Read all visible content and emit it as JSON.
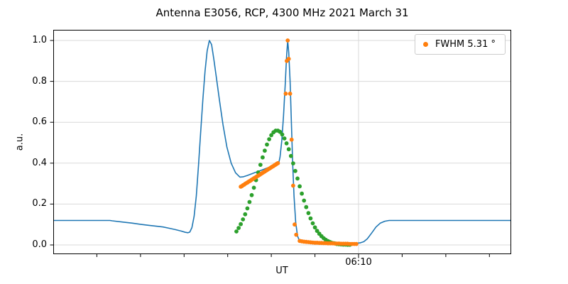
{
  "chart_data": {
    "type": "line",
    "title": "Antenna E3056, RCP, 4300 MHz 2021 March 31",
    "xlabel": "UT",
    "ylabel": "a.u.",
    "grid": true,
    "x_axis": {
      "start": 0,
      "end": 105,
      "units": "minutes after 05:00 UT",
      "minor_tick_interval": 10,
      "major_ticks": [
        {
          "t": 70,
          "label": "06:10"
        }
      ]
    },
    "ylim": [
      -0.045,
      1.052
    ],
    "yticks": [
      {
        "v": 0.0,
        "label": "0.0"
      },
      {
        "v": 0.2,
        "label": "0.2"
      },
      {
        "v": 0.4,
        "label": "0.4"
      },
      {
        "v": 0.6,
        "label": "0.6"
      },
      {
        "v": 0.8,
        "label": "0.8"
      },
      {
        "v": 1.0,
        "label": "1.0"
      }
    ],
    "legend": {
      "label": "FWHM 5.31 °",
      "marker_color": "#ff7f0e",
      "location": "upper right"
    },
    "series": [
      {
        "name": "signal-line",
        "type": "line",
        "color": "#1f77b4",
        "stroke_width": 1.6,
        "points": [
          [
            0,
            0.12
          ],
          [
            6,
            0.12
          ],
          [
            12,
            0.12
          ],
          [
            13,
            0.12
          ],
          [
            13.5,
            0.118
          ],
          [
            16,
            0.112
          ],
          [
            18,
            0.107
          ],
          [
            20,
            0.101
          ],
          [
            22,
            0.096
          ],
          [
            24,
            0.091
          ],
          [
            25.2,
            0.088
          ],
          [
            26.5,
            0.082
          ],
          [
            28,
            0.075
          ],
          [
            29.3,
            0.068
          ],
          [
            30.3,
            0.062
          ],
          [
            30.9,
            0.06
          ],
          [
            31.3,
            0.063
          ],
          [
            31.8,
            0.085
          ],
          [
            32.3,
            0.14
          ],
          [
            32.8,
            0.24
          ],
          [
            33.3,
            0.39
          ],
          [
            33.8,
            0.55
          ],
          [
            34.3,
            0.71
          ],
          [
            34.8,
            0.85
          ],
          [
            35.3,
            0.95
          ],
          [
            35.8,
            1.0
          ],
          [
            36.3,
            0.98
          ],
          [
            36.8,
            0.91
          ],
          [
            37.4,
            0.82
          ],
          [
            38.1,
            0.71
          ],
          [
            38.9,
            0.59
          ],
          [
            39.8,
            0.48
          ],
          [
            40.8,
            0.4
          ],
          [
            41.8,
            0.353
          ],
          [
            42.8,
            0.332
          ],
          [
            43.5,
            0.333
          ],
          [
            44.5,
            0.34
          ],
          [
            46,
            0.352
          ],
          [
            47.5,
            0.364
          ],
          [
            49,
            0.376
          ],
          [
            50.2,
            0.386
          ],
          [
            51.2,
            0.394
          ],
          [
            51.7,
            0.401
          ],
          [
            52.0,
            0.43
          ],
          [
            52.4,
            0.51
          ],
          [
            52.8,
            0.63
          ],
          [
            53.2,
            0.79
          ],
          [
            53.5,
            0.92
          ],
          [
            53.75,
            1.0
          ],
          [
            54.0,
            0.94
          ],
          [
            54.3,
            0.8
          ],
          [
            54.6,
            0.6
          ],
          [
            54.9,
            0.4
          ],
          [
            55.2,
            0.24
          ],
          [
            55.6,
            0.11
          ],
          [
            56.0,
            0.045
          ],
          [
            56.4,
            0.022
          ],
          [
            57,
            0.014
          ],
          [
            58,
            0.011
          ],
          [
            60,
            0.01
          ],
          [
            63,
            0.009
          ],
          [
            66,
            0.009
          ],
          [
            69,
            0.009
          ],
          [
            70.3,
            0.01
          ],
          [
            71.2,
            0.016
          ],
          [
            72,
            0.03
          ],
          [
            73,
            0.058
          ],
          [
            74,
            0.088
          ],
          [
            75,
            0.107
          ],
          [
            76,
            0.116
          ],
          [
            77,
            0.12
          ],
          [
            80,
            0.12
          ],
          [
            85,
            0.12
          ],
          [
            90,
            0.12
          ],
          [
            95,
            0.12
          ],
          [
            100,
            0.12
          ],
          [
            105,
            0.12
          ]
        ]
      },
      {
        "name": "gaussian-fit-points",
        "type": "scatter",
        "color": "#2ca02c",
        "marker_radius": 2.9,
        "points": [
          [
            42,
            0.066
          ],
          [
            42.5,
            0.083
          ],
          [
            43,
            0.102
          ],
          [
            43.5,
            0.125
          ],
          [
            44,
            0.15
          ],
          [
            44.5,
            0.179
          ],
          [
            45,
            0.21
          ],
          [
            45.5,
            0.244
          ],
          [
            46,
            0.28
          ],
          [
            46.5,
            0.317
          ],
          [
            47,
            0.355
          ],
          [
            47.5,
            0.392
          ],
          [
            48,
            0.428
          ],
          [
            48.5,
            0.461
          ],
          [
            49,
            0.491
          ],
          [
            49.5,
            0.517
          ],
          [
            50,
            0.537
          ],
          [
            50.5,
            0.551
          ],
          [
            51,
            0.559
          ],
          [
            51.5,
            0.559
          ],
          [
            52,
            0.553
          ],
          [
            52.5,
            0.54
          ],
          [
            53,
            0.521
          ],
          [
            53.5,
            0.497
          ],
          [
            54,
            0.468
          ],
          [
            54.5,
            0.435
          ],
          [
            55,
            0.399
          ],
          [
            55.5,
            0.362
          ],
          [
            56,
            0.325
          ],
          [
            56.5,
            0.287
          ],
          [
            57,
            0.251
          ],
          [
            57.5,
            0.217
          ],
          [
            58,
            0.185
          ],
          [
            58.5,
            0.156
          ],
          [
            59,
            0.13
          ],
          [
            59.5,
            0.106
          ],
          [
            60,
            0.086
          ],
          [
            60.5,
            0.069
          ],
          [
            61,
            0.055
          ],
          [
            61.5,
            0.043
          ],
          [
            62,
            0.033
          ],
          [
            62.5,
            0.025
          ],
          [
            63,
            0.019
          ],
          [
            63.5,
            0.014
          ],
          [
            64,
            0.01
          ],
          [
            64.5,
            0.008
          ],
          [
            65,
            0.005
          ],
          [
            65.5,
            0.004
          ],
          [
            66,
            0.003
          ],
          [
            66.5,
            0.002
          ],
          [
            67,
            0.002
          ],
          [
            67.5,
            0.001
          ],
          [
            68,
            0.001
          ]
        ]
      },
      {
        "name": "fwhm-measure-points",
        "type": "scatter",
        "color": "#ff7f0e",
        "marker_radius": 2.9,
        "points": [
          [
            43.0,
            0.285
          ],
          [
            43.25,
            0.288
          ],
          [
            43.5,
            0.292
          ],
          [
            43.75,
            0.295
          ],
          [
            44.0,
            0.299
          ],
          [
            44.25,
            0.302
          ],
          [
            44.5,
            0.305
          ],
          [
            44.75,
            0.309
          ],
          [
            45.0,
            0.312
          ],
          [
            45.25,
            0.315
          ],
          [
            45.5,
            0.319
          ],
          [
            45.75,
            0.322
          ],
          [
            46.0,
            0.326
          ],
          [
            46.25,
            0.329
          ],
          [
            46.5,
            0.332
          ],
          [
            46.75,
            0.336
          ],
          [
            47.0,
            0.339
          ],
          [
            47.25,
            0.342
          ],
          [
            47.5,
            0.346
          ],
          [
            47.75,
            0.349
          ],
          [
            48.0,
            0.353
          ],
          [
            48.25,
            0.356
          ],
          [
            48.5,
            0.359
          ],
          [
            48.75,
            0.363
          ],
          [
            49.0,
            0.366
          ],
          [
            49.25,
            0.37
          ],
          [
            49.5,
            0.373
          ],
          [
            49.75,
            0.376
          ],
          [
            50.0,
            0.38
          ],
          [
            50.25,
            0.383
          ],
          [
            50.5,
            0.386
          ],
          [
            50.75,
            0.39
          ],
          [
            51.0,
            0.393
          ],
          [
            51.25,
            0.397
          ],
          [
            51.5,
            0.4
          ],
          [
            53.3,
            0.74
          ],
          [
            53.55,
            0.9
          ],
          [
            53.75,
            1.0
          ],
          [
            54.0,
            0.91
          ],
          [
            54.3,
            0.74
          ],
          [
            54.65,
            0.515
          ],
          [
            55.0,
            0.29
          ],
          [
            55.35,
            0.1
          ],
          [
            55.7,
            0.05
          ],
          [
            56.5,
            0.02
          ],
          [
            57.0,
            0.018
          ],
          [
            57.5,
            0.016
          ],
          [
            58.0,
            0.015
          ],
          [
            58.5,
            0.014
          ],
          [
            59.0,
            0.013
          ],
          [
            59.5,
            0.012
          ],
          [
            60.0,
            0.011
          ],
          [
            60.5,
            0.011
          ],
          [
            61.0,
            0.01
          ],
          [
            61.5,
            0.01
          ],
          [
            62.0,
            0.009
          ],
          [
            62.5,
            0.009
          ],
          [
            63.0,
            0.008
          ],
          [
            63.5,
            0.008
          ],
          [
            64.0,
            0.008
          ],
          [
            64.5,
            0.007
          ],
          [
            65.0,
            0.007
          ],
          [
            65.5,
            0.007
          ],
          [
            66.0,
            0.006
          ],
          [
            66.5,
            0.006
          ],
          [
            67.0,
            0.006
          ],
          [
            67.5,
            0.006
          ],
          [
            68.0,
            0.005
          ],
          [
            68.5,
            0.005
          ],
          [
            69.0,
            0.005
          ],
          [
            69.5,
            0.005
          ]
        ]
      }
    ],
    "style": {
      "grid_color": "#d9d9d9",
      "spine_color": "#000000",
      "tick_color": "#000000"
    }
  }
}
